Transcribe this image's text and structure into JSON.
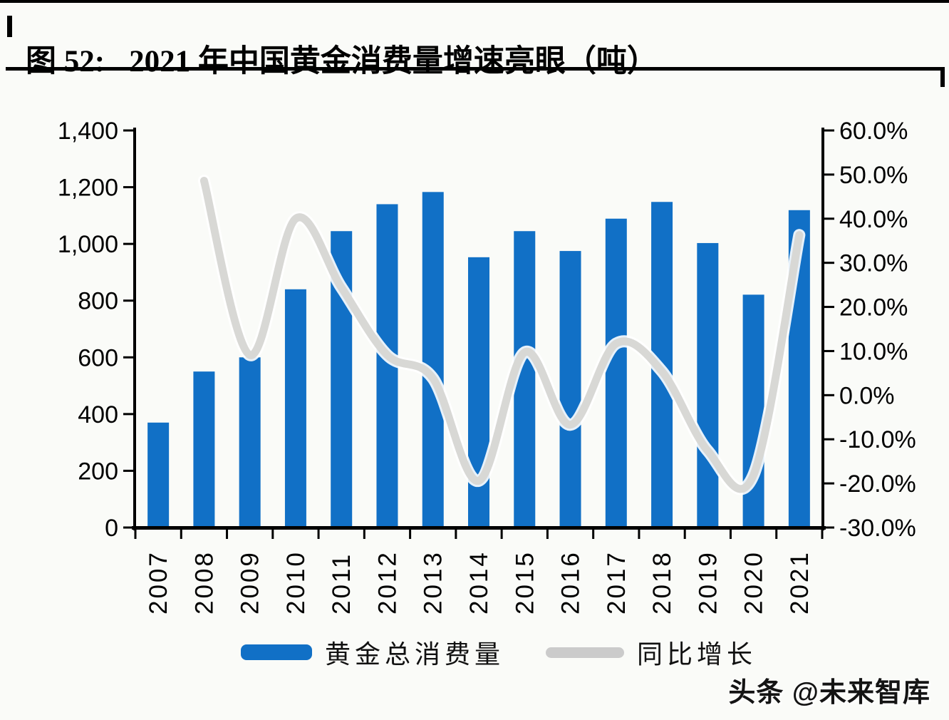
{
  "page": {
    "background": "#FAFBF8"
  },
  "header": {
    "figure_label": "图 52:",
    "title": "2021 年中国黄金消费量增速亮眼（吨）"
  },
  "legend": {
    "items": [
      {
        "label": "黄金总消费量",
        "type": "bar",
        "color": "#1170C6"
      },
      {
        "label": "同比增长",
        "type": "line",
        "color": "#CBCBCB"
      }
    ]
  },
  "watermark": {
    "text": "头条 @未来智库"
  },
  "chart_data": {
    "type": "bar",
    "subtype": "bar+line combo, dual axis",
    "title": "2021 年中国黄金消费量增速亮眼（吨）",
    "categories": [
      "2007",
      "2008",
      "2009",
      "2010",
      "2011",
      "2012",
      "2013",
      "2014",
      "2015",
      "2016",
      "2017",
      "2018",
      "2019",
      "2020",
      "2021"
    ],
    "series": [
      {
        "name": "黄金总消费量",
        "type": "bar",
        "axis": "left",
        "unit": "吨",
        "color": "#1170C6",
        "values": [
          370,
          550,
          600,
          840,
          1045,
          1140,
          1183,
          953,
          1045,
          975,
          1089,
          1148,
          1003,
          821,
          1119
        ]
      },
      {
        "name": "同比增长",
        "type": "line",
        "axis": "right",
        "unit": "%",
        "color": "#D8D8D5",
        "smooth": true,
        "values": [
          null,
          48.6,
          9.1,
          40.0,
          24.4,
          9.1,
          3.8,
          -19.4,
          9.7,
          -6.7,
          11.7,
          5.4,
          -12.6,
          -18.1,
          36.3
        ]
      }
    ],
    "left_axis": {
      "min": 0,
      "max": 1400,
      "step": 200,
      "tick_labels": [
        "0",
        "200",
        "400",
        "600",
        "800",
        "1,000",
        "1,200",
        "1,400"
      ]
    },
    "right_axis": {
      "min": -30,
      "max": 60,
      "step": 10,
      "tick_labels": [
        "-30.0%",
        "-20.0%",
        "-10.0%",
        "0.0%",
        "10.0%",
        "20.0%",
        "30.0%",
        "40.0%",
        "50.0%",
        "60.0%"
      ]
    },
    "grid": false,
    "legend_position": "bottom",
    "x_label_rotation": -90
  }
}
